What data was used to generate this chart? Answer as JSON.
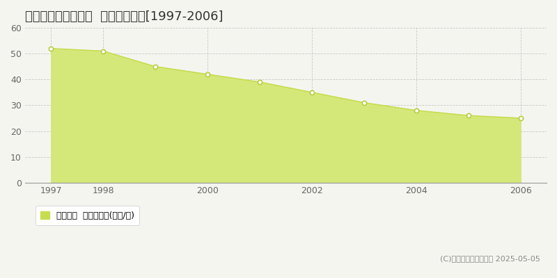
{
  "title": "生駒郡斑鳩町稲葉西  基準地価推移[1997-2006]",
  "years": [
    1997,
    1998,
    1999,
    2000,
    2001,
    2002,
    2003,
    2004,
    2005,
    2006
  ],
  "values": [
    52,
    51,
    45,
    42,
    39,
    35,
    31,
    28,
    26,
    25
  ],
  "xlim": [
    1996.5,
    2006.5
  ],
  "ylim": [
    0,
    60
  ],
  "yticks": [
    0,
    10,
    20,
    30,
    40,
    50,
    60
  ],
  "xticks": [
    1997,
    1998,
    2000,
    2002,
    2004,
    2006
  ],
  "line_color": "#c8dc50",
  "fill_color": "#d4e87a",
  "marker_color": "#ffffff",
  "marker_edge_color": "#b8cc40",
  "grid_color": "#bbbbbb",
  "background_color": "#f5f5f0",
  "plot_bg_color": "#f5f5f0",
  "legend_label": "基準地価  平均坪単価(万円/坪)",
  "legend_color": "#c8dc50",
  "copyright_text": "(C)土地価格ドットコム 2025-05-05",
  "title_fontsize": 13,
  "axis_fontsize": 9,
  "legend_fontsize": 9,
  "copyright_fontsize": 8
}
